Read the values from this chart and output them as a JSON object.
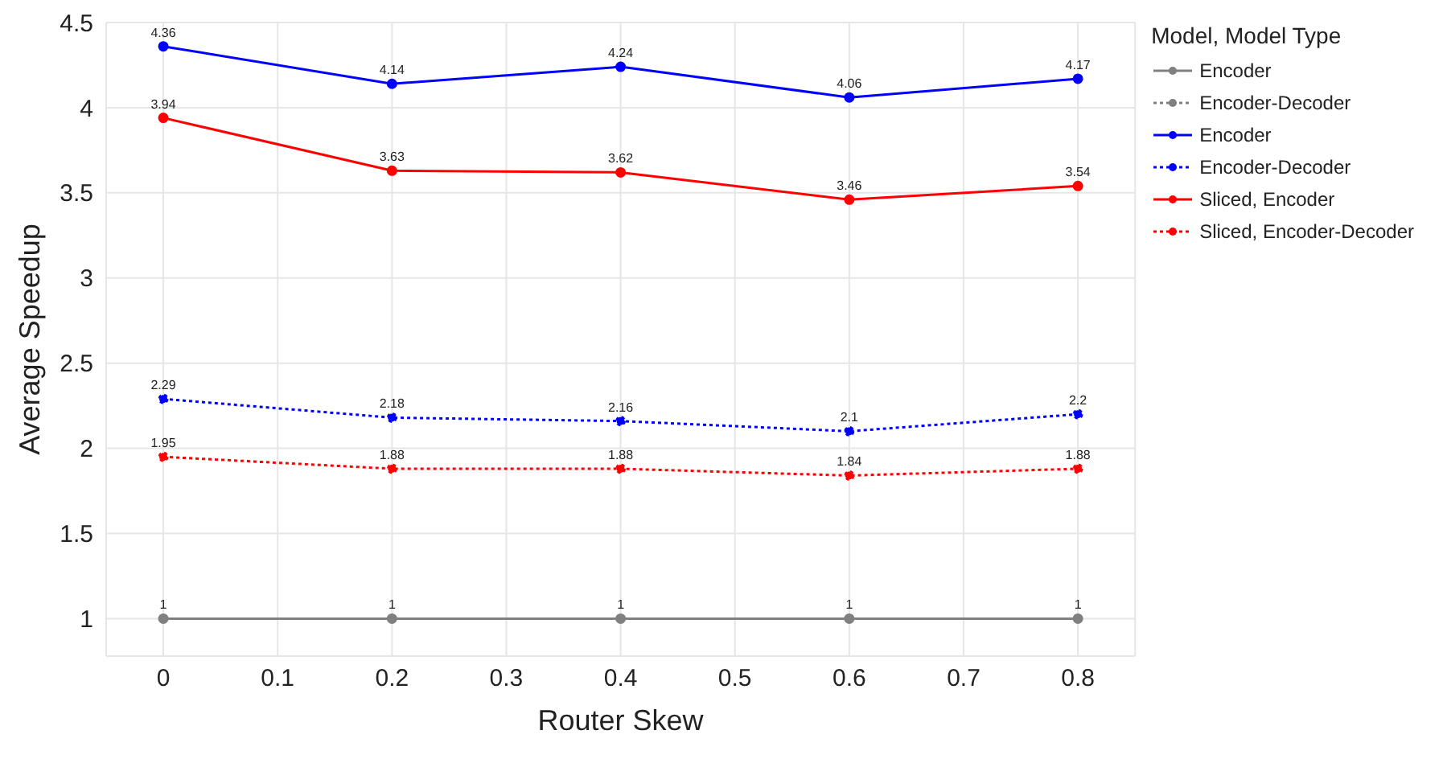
{
  "chart_data": {
    "type": "line",
    "xlabel": "Router Skew",
    "ylabel": "Average Speedup",
    "legend_title": "Model, Model Type",
    "x": [
      0,
      0.2,
      0.4,
      0.6,
      0.8
    ],
    "series": [
      {
        "name": "Encoder",
        "color": "#808080",
        "line_style": "solid",
        "values": [
          1,
          1,
          1,
          1,
          1
        ]
      },
      {
        "name": "Encoder-Decoder",
        "color": "#808080",
        "line_style": "dotted",
        "values": [
          null,
          null,
          null,
          null,
          null
        ]
      },
      {
        "name": "Encoder",
        "color": "#0000ff",
        "line_style": "solid",
        "values": [
          4.36,
          4.14,
          4.24,
          4.06,
          4.17
        ]
      },
      {
        "name": "Encoder-Decoder",
        "color": "#0000ff",
        "line_style": "dotted",
        "values": [
          2.29,
          2.18,
          2.16,
          2.1,
          2.2
        ]
      },
      {
        "name": "Sliced, Encoder",
        "color": "#ff0000",
        "line_style": "solid",
        "values": [
          3.94,
          3.63,
          3.62,
          3.46,
          3.54
        ]
      },
      {
        "name": "Sliced, Encoder-Decoder",
        "color": "#ff0000",
        "line_style": "dotted",
        "values": [
          1.95,
          1.88,
          1.88,
          1.84,
          1.88
        ]
      }
    ],
    "xlim": [
      -0.05,
      0.85
    ],
    "xticks": [
      0,
      0.1,
      0.2,
      0.3,
      0.4,
      0.5,
      0.6,
      0.7,
      0.8
    ],
    "ylim": [
      0.78,
      4.5
    ],
    "yticks": [
      1,
      1.5,
      2,
      2.5,
      3,
      3.5,
      4,
      4.5
    ],
    "grid": true,
    "legend": "right",
    "marker": "circle",
    "data_labels": true
  }
}
